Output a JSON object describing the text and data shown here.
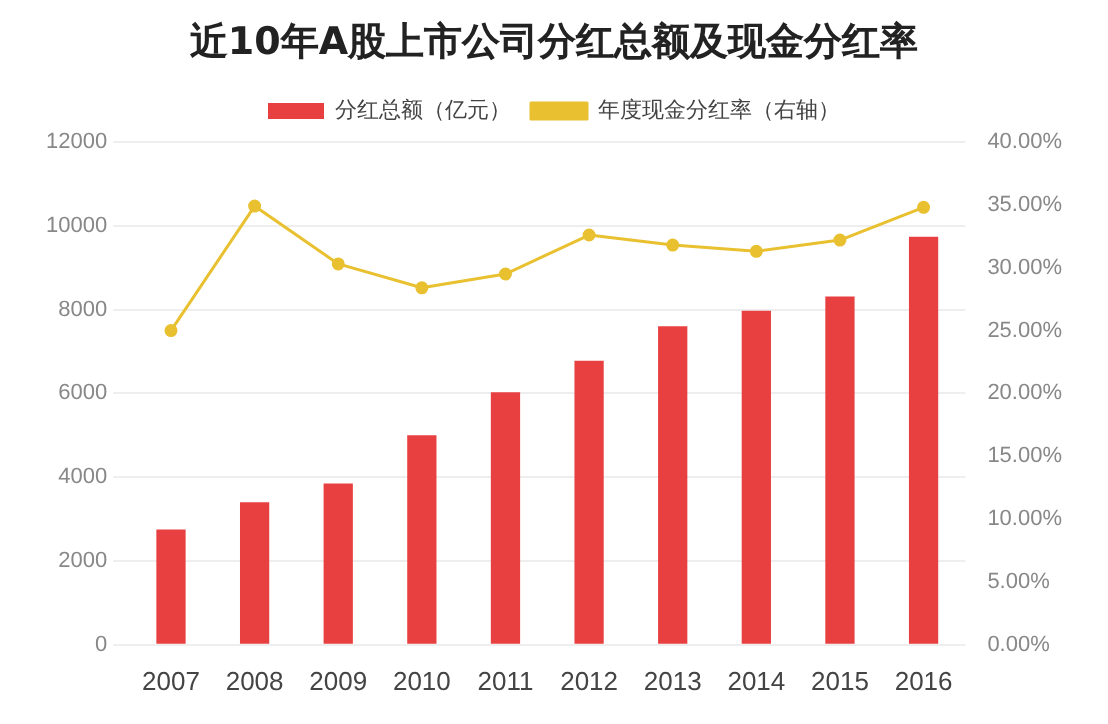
{
  "chart_data": {
    "type": "bar",
    "title": "近10年A股上市公司分红总额及现金分红率",
    "categories": [
      "2007",
      "2008",
      "2009",
      "2010",
      "2011",
      "2012",
      "2013",
      "2014",
      "2015",
      "2016"
    ],
    "series": [
      {
        "name": "分红总额（亿元）",
        "color": "#e84040",
        "values": [
          2750,
          3400,
          3850,
          5000,
          6030,
          6780,
          7600,
          7970,
          8310,
          9740
        ]
      },
      {
        "name": "年度现金分红率（右轴）",
        "type": "line",
        "axis": "y2",
        "color": "#e8c030",
        "values": [
          25.0,
          34.9,
          30.3,
          28.4,
          29.5,
          32.6,
          31.8,
          31.3,
          32.2,
          34.8
        ]
      }
    ],
    "ylim": [
      0,
      12000
    ],
    "yticks": [
      0,
      2000,
      4000,
      6000,
      8000,
      10000,
      12000
    ],
    "y2lim": [
      0,
      40
    ],
    "y2ticks": [
      {
        "value": 0,
        "label": "0.00%"
      },
      {
        "value": 5,
        "label": "5.00%"
      },
      {
        "value": 10,
        "label": "10.00%"
      },
      {
        "value": 15,
        "label": "15.00%"
      },
      {
        "value": 20,
        "label": "20.00%"
      },
      {
        "value": 25,
        "label": "25.00%"
      },
      {
        "value": 30,
        "label": "30.00%"
      },
      {
        "value": 35,
        "label": "35.00%"
      },
      {
        "value": 40,
        "label": "40.00%"
      }
    ],
    "grid": "y",
    "legend": "top",
    "marker": "circle"
  }
}
